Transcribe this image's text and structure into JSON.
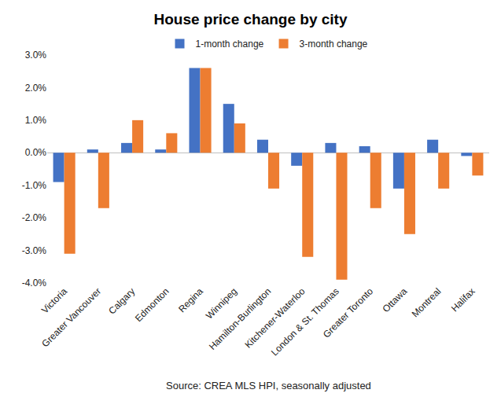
{
  "chart_data": {
    "type": "bar",
    "title": "House price change by city",
    "annotations": [
      "Source: CREA MLS HPI, seasonally adjusted"
    ],
    "categories": [
      "Victoria",
      "Greater Vancouver",
      "Calgary",
      "Edmonton",
      "Regina",
      "Winnipeg",
      "Hamilton-Burlington",
      "Kitchener-Waterloo",
      "London & St. Thomas",
      "Greater Toronto",
      "Ottawa",
      "Montreal",
      "Halifax"
    ],
    "series": [
      {
        "name": "1-month change",
        "color": "#4472c4",
        "values": [
          -0.9,
          0.1,
          0.3,
          0.1,
          2.6,
          1.5,
          0.4,
          -0.4,
          0.3,
          0.2,
          -1.1,
          0.4,
          -0.1
        ]
      },
      {
        "name": "3-month change",
        "color": "#ed7d31",
        "values": [
          -3.1,
          -1.7,
          1.0,
          0.6,
          2.6,
          0.9,
          -1.1,
          -3.2,
          -3.9,
          -1.7,
          -2.5,
          -1.1,
          -0.7
        ]
      }
    ],
    "ylim": [
      -4,
      3
    ],
    "yticks": [
      {
        "value": -4,
        "label": "-4.0%"
      },
      {
        "value": -3,
        "label": "-3.0%"
      },
      {
        "value": -2,
        "label": "-2.0%"
      },
      {
        "value": -1,
        "label": "-1.0%"
      },
      {
        "value": 0,
        "label": "0.0%"
      },
      {
        "value": 1,
        "label": "1.0%"
      },
      {
        "value": 2,
        "label": "2.0%"
      },
      {
        "value": 3,
        "label": "3.0%"
      }
    ],
    "grid": false,
    "legend": "top"
  }
}
